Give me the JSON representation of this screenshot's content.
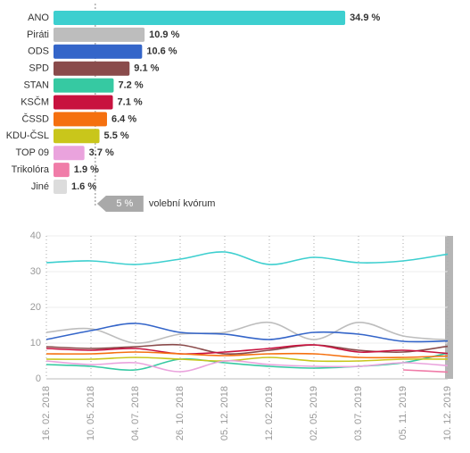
{
  "chart_data": [
    {
      "type": "bar",
      "orientation": "horizontal",
      "categories": [
        "ANO",
        "Piráti",
        "ODS",
        "SPD",
        "STAN",
        "KSČM",
        "ČSSD",
        "KDU-ČSL",
        "TOP 09",
        "Trikolóra",
        "Jiné"
      ],
      "values": [
        34.9,
        10.9,
        10.6,
        9.1,
        7.2,
        7.1,
        6.4,
        5.5,
        3.7,
        1.9,
        1.6
      ],
      "value_labels": [
        "34.9 %",
        "10.9 %",
        "10.6 %",
        "9.1 %",
        "7.2 %",
        "7.1 %",
        "6.4 %",
        "5.5 %",
        "3.7 %",
        "1.9 %",
        "1.6 %"
      ],
      "colors": [
        "#3dcfcf",
        "#bdbdbd",
        "#3465c9",
        "#8a4b4b",
        "#36c9a2",
        "#c8123f",
        "#f5700f",
        "#c9c61b",
        "#eaa3dd",
        "#f07ca8",
        "#dcdcdc"
      ],
      "xlim": [
        0,
        35
      ],
      "threshold": {
        "value": 5,
        "label": "5 %",
        "text": "volební kvórum"
      }
    },
    {
      "type": "line",
      "categories": [
        "16. 02. 2018",
        "10. 05. 2018",
        "04. 07. 2018",
        "26. 10. 2018",
        "05. 12. 2018",
        "12. 02. 2019",
        "02. 05. 2019",
        "03. 07. 2019",
        "05. 11. 2019",
        "10. 12. 2019"
      ],
      "ylim": [
        0,
        40
      ],
      "yticks": [
        0,
        10,
        20,
        30,
        40
      ],
      "grid": true,
      "series": [
        {
          "color": "#3dcfcf",
          "values": [
            32.5,
            33,
            32,
            33.5,
            35.5,
            32,
            34,
            32.5,
            33,
            34.9
          ]
        },
        {
          "color": "#bdbdbd",
          "values": [
            13,
            14,
            10,
            12.5,
            13,
            15.8,
            11,
            15.8,
            12,
            10.9
          ]
        },
        {
          "color": "#3465c9",
          "values": [
            11,
            13.5,
            15.5,
            13,
            12.5,
            11,
            13,
            12.5,
            10.5,
            10.6
          ]
        },
        {
          "color": "#8a4b4b",
          "values": [
            9,
            8.5,
            9,
            9.5,
            7,
            8,
            9.5,
            8,
            7.5,
            9.1
          ]
        },
        {
          "color": "#36c9a2",
          "values": [
            4,
            3.5,
            2.5,
            5.5,
            4.5,
            3.5,
            3,
            3.5,
            4.5,
            7.2
          ]
        },
        {
          "color": "#c8123f",
          "values": [
            8.5,
            8,
            8.5,
            7,
            7.5,
            8.5,
            9.5,
            7.5,
            8,
            7.1
          ]
        },
        {
          "color": "#f5700f",
          "values": [
            7,
            7,
            7.5,
            7,
            6.5,
            7,
            7,
            6,
            6,
            6.4
          ]
        },
        {
          "color": "#c9c61b",
          "values": [
            5.5,
            5.5,
            6,
            5.5,
            5,
            6,
            5,
            5,
            5.5,
            5.5
          ]
        },
        {
          "color": "#eaa3dd",
          "values": [
            5,
            4,
            4.5,
            2,
            5,
            4,
            3.5,
            3.5,
            4.5,
            3.7
          ]
        },
        {
          "color": "#f07ca8",
          "values": [
            null,
            null,
            null,
            null,
            null,
            null,
            null,
            null,
            2.5,
            1.9
          ]
        }
      ]
    }
  ]
}
